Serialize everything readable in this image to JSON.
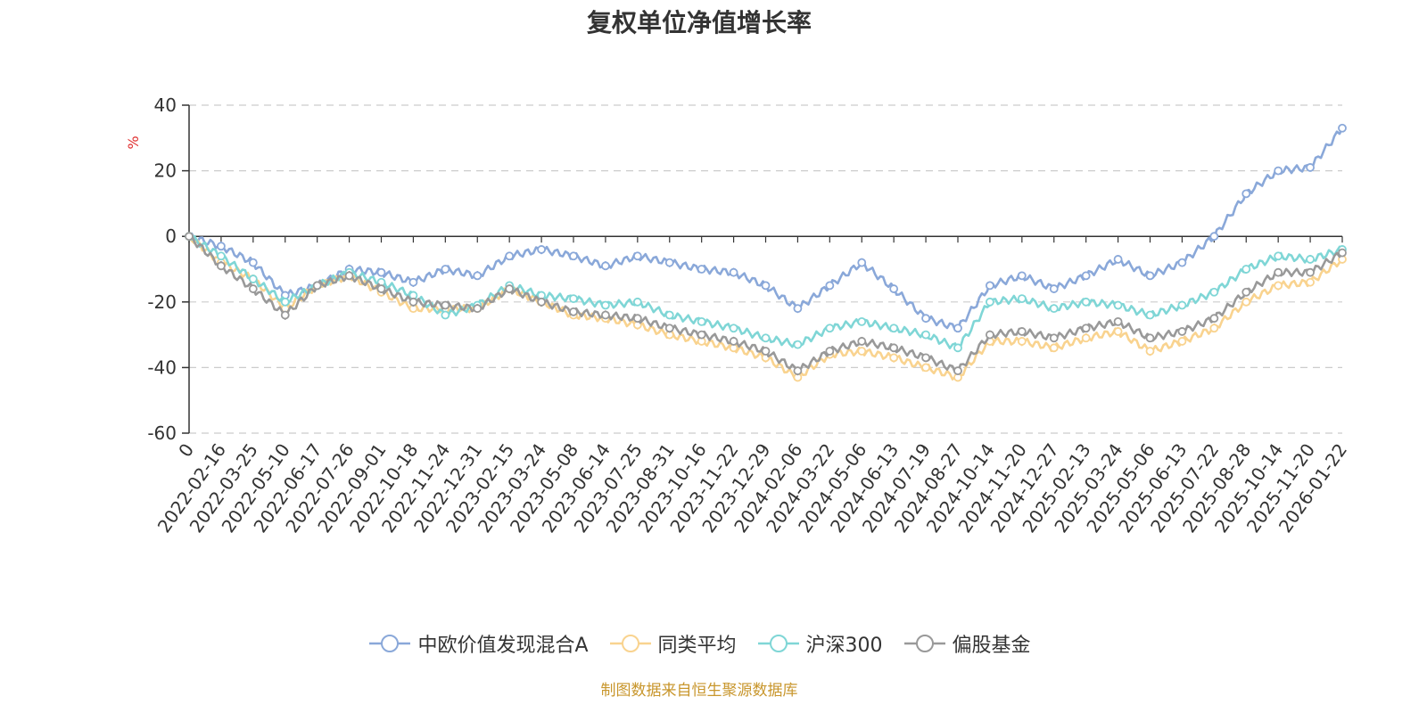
{
  "source_note": "制图数据来自恒生聚源数据库",
  "chart_data": {
    "type": "line",
    "title": "复权单位净值增长率",
    "ylabel": "%",
    "ylim": [
      -60,
      40
    ],
    "yticks": [
      40,
      20,
      0,
      -20,
      -40,
      -60
    ],
    "grid": true,
    "legend_position": "bottom",
    "x_tick_labels": [
      "0",
      "2022-02-16",
      "2022-03-25",
      "2022-05-10",
      "2022-06-17",
      "2022-07-26",
      "2022-09-01",
      "2022-10-18",
      "2022-11-24",
      "2022-12-31",
      "2023-02-15",
      "2023-03-24",
      "2023-05-08",
      "2023-06-14",
      "2023-07-25",
      "2023-08-31",
      "2023-10-16",
      "2023-11-22",
      "2023-12-29",
      "2024-02-06",
      "2024-03-22",
      "2024-05-06",
      "2024-06-13",
      "2024-07-19",
      "2024-08-27",
      "2024-10-14",
      "2024-11-20",
      "2024-12-27",
      "2025-02-13",
      "2025-03-24",
      "2025-05-06",
      "2025-06-13",
      "2025-07-22",
      "2025-08-28",
      "2025-10-14",
      "2025-11-20",
      "2026-01-22"
    ],
    "x_index": [
      0,
      1,
      2,
      3,
      4,
      5,
      6,
      7,
      8,
      9,
      10,
      11,
      12,
      13,
      14,
      15,
      16,
      17,
      18,
      19,
      20,
      21,
      22,
      23,
      24,
      25,
      26,
      27,
      28,
      29,
      30,
      31,
      32,
      33,
      34,
      35,
      36
    ],
    "series": [
      {
        "name": "中欧价值发现混合A",
        "color": "#8aa8d9",
        "values": [
          0,
          -3,
          -8,
          -18,
          -15,
          -10,
          -11,
          -14,
          -10,
          -12,
          -6,
          -4,
          -6,
          -9,
          -6,
          -8,
          -10,
          -11,
          -15,
          -22,
          -15,
          -8,
          -16,
          -25,
          -28,
          -15,
          -12,
          -16,
          -12,
          -7,
          -12,
          -8,
          0,
          13,
          20,
          21,
          33
        ]
      },
      {
        "name": "同类平均",
        "color": "#f9d38f",
        "values": [
          0,
          -8,
          -13,
          -22,
          -15,
          -12,
          -17,
          -22,
          -22,
          -22,
          -16,
          -20,
          -24,
          -25,
          -27,
          -30,
          -32,
          -34,
          -37,
          -43,
          -36,
          -35,
          -37,
          -40,
          -43,
          -32,
          -32,
          -34,
          -31,
          -29,
          -35,
          -32,
          -28,
          -20,
          -15,
          -14,
          -7
        ]
      },
      {
        "name": "沪深300",
        "color": "#7fd6d6",
        "values": [
          0,
          -6,
          -13,
          -20,
          -15,
          -11,
          -14,
          -18,
          -24,
          -21,
          -15,
          -18,
          -19,
          -21,
          -20,
          -24,
          -26,
          -28,
          -31,
          -33,
          -28,
          -26,
          -28,
          -30,
          -34,
          -20,
          -19,
          -22,
          -20,
          -21,
          -24,
          -21,
          -17,
          -10,
          -6,
          -7,
          -4
        ]
      },
      {
        "name": "偏股基金",
        "color": "#999999",
        "values": [
          0,
          -9,
          -16,
          -24,
          -15,
          -12,
          -16,
          -20,
          -21,
          -22,
          -16,
          -20,
          -23,
          -24,
          -25,
          -28,
          -30,
          -32,
          -35,
          -41,
          -35,
          -32,
          -34,
          -37,
          -41,
          -30,
          -29,
          -31,
          -28,
          -26,
          -31,
          -29,
          -25,
          -17,
          -11,
          -11,
          -5
        ]
      }
    ]
  }
}
